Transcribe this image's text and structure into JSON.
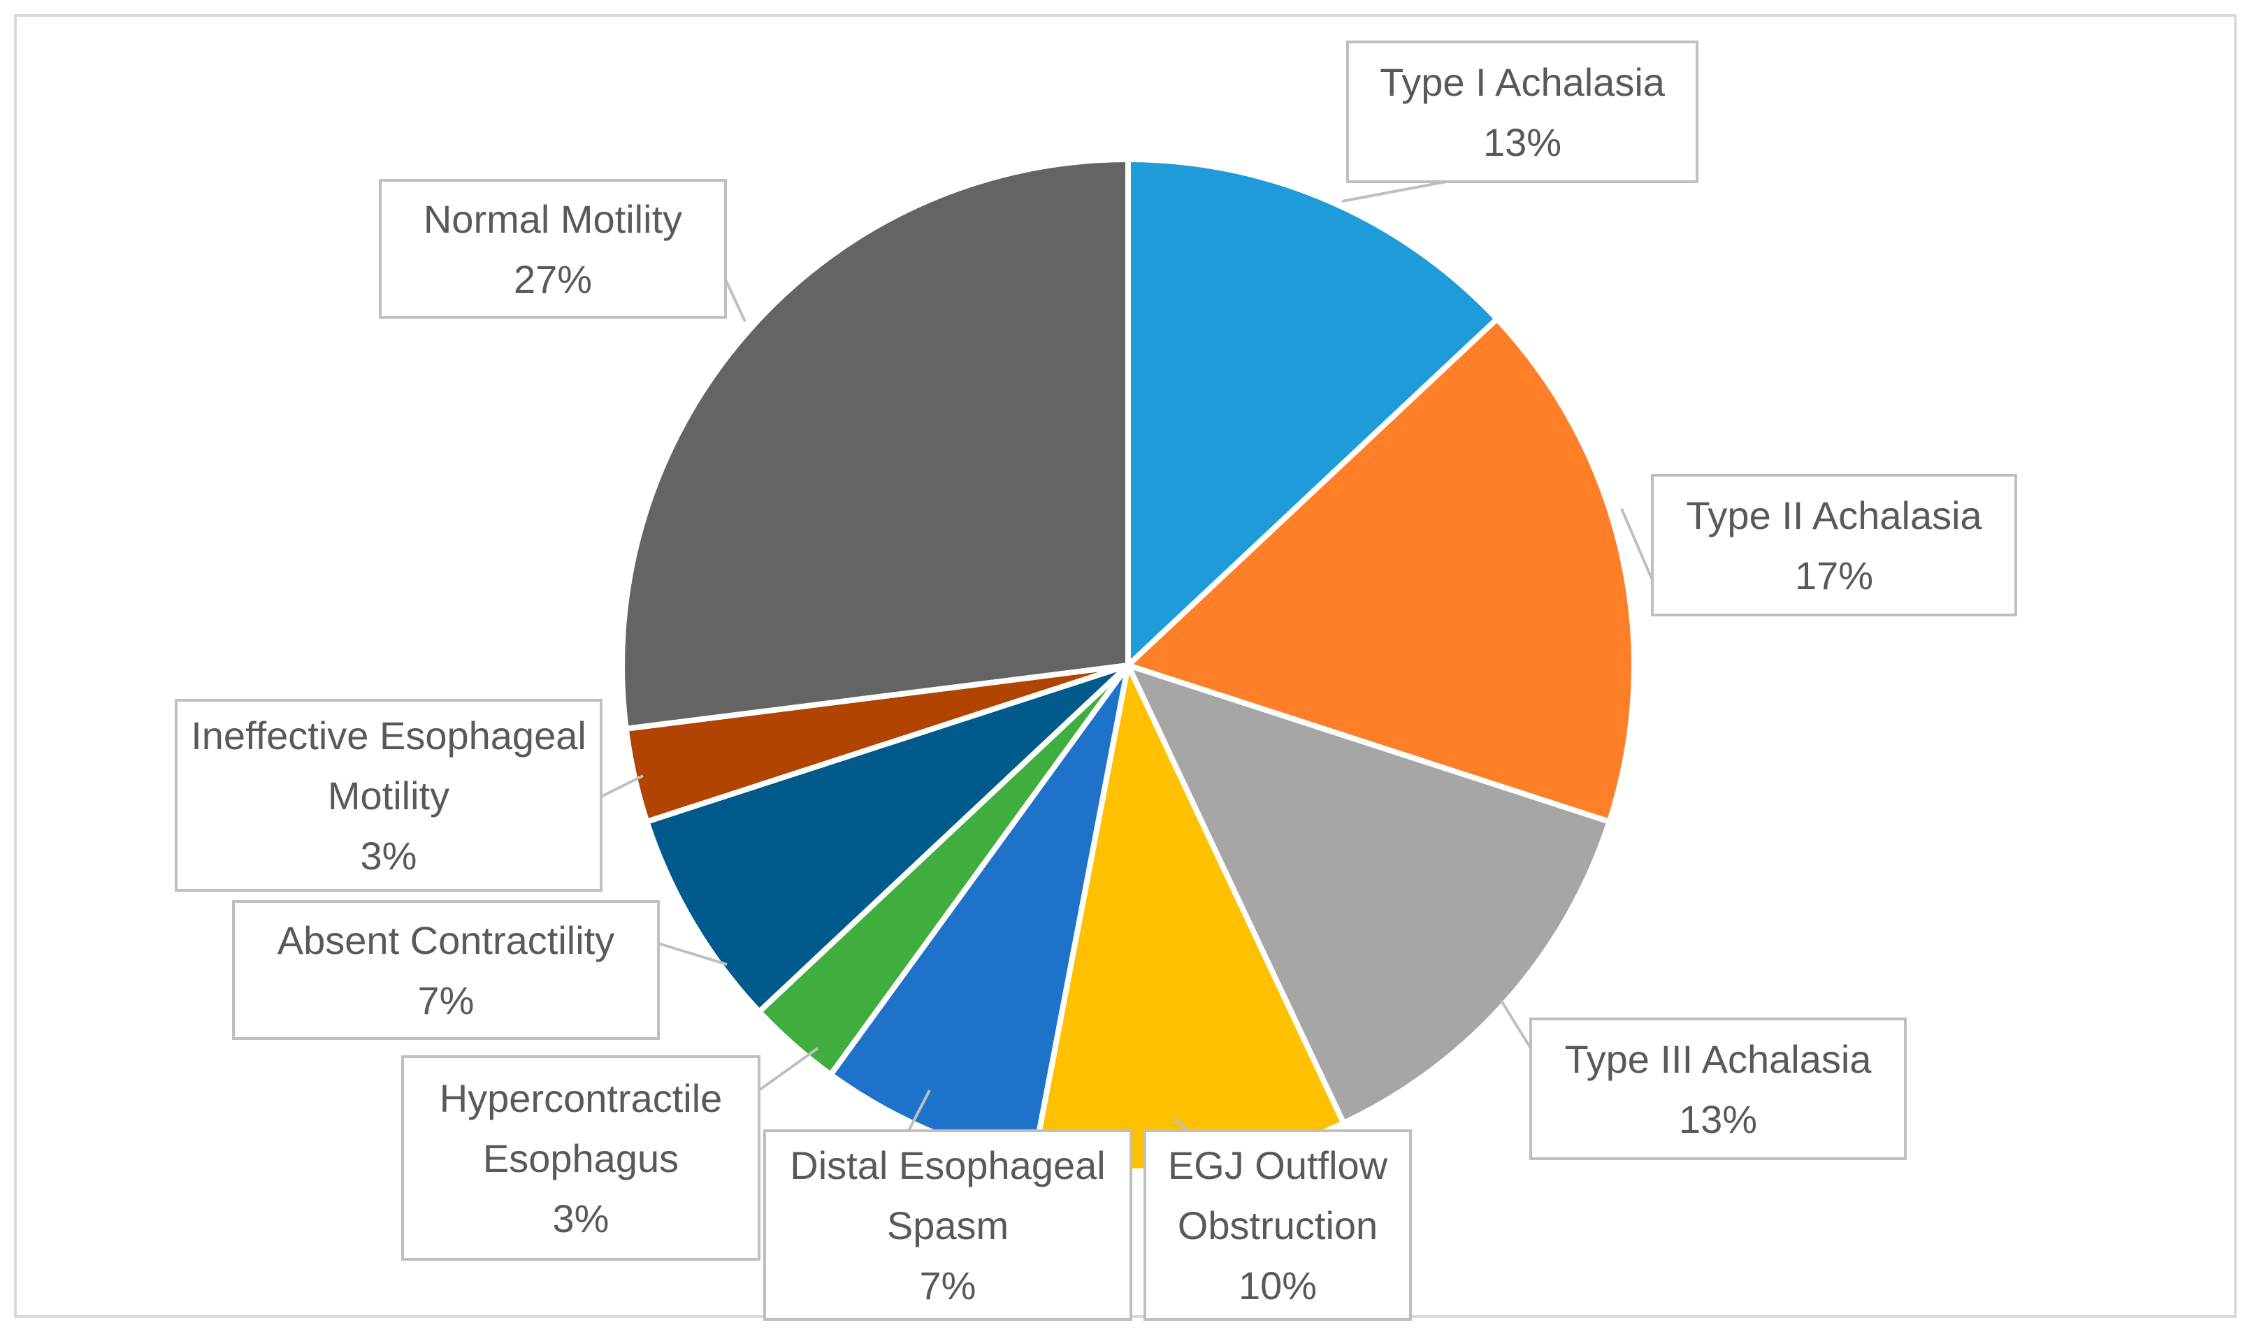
{
  "chart_data": {
    "type": "pie",
    "title": "",
    "slices": [
      {
        "label": "Type I Achalasia",
        "pct_label": "13%",
        "value": 13,
        "color": "#1f9bd9"
      },
      {
        "label": "Type II Achalasia",
        "pct_label": "17%",
        "value": 17,
        "color": "#fe7f27"
      },
      {
        "label": "Type III Achalasia",
        "pct_label": "13%",
        "value": 13,
        "color": "#a6a6a6"
      },
      {
        "label": "EGJ Outflow Obstruction",
        "pct_label": "10%",
        "value": 10,
        "color": "#ffc000"
      },
      {
        "label": "Distal Esophageal Spasm",
        "pct_label": "7%",
        "value": 7,
        "color": "#1f72c9"
      },
      {
        "label": "Hypercontractile Esophagus",
        "pct_label": "3%",
        "value": 3,
        "color": "#3fae3f"
      },
      {
        "label": "Absent Contractility",
        "pct_label": "7%",
        "value": 7,
        "color": "#005a8c"
      },
      {
        "label": "Ineffective Esophageal Motility",
        "pct_label": "3%",
        "value": 3,
        "color": "#b04400"
      },
      {
        "label": "Normal Motility",
        "pct_label": "27%",
        "value": 27,
        "color": "#646464"
      }
    ]
  }
}
